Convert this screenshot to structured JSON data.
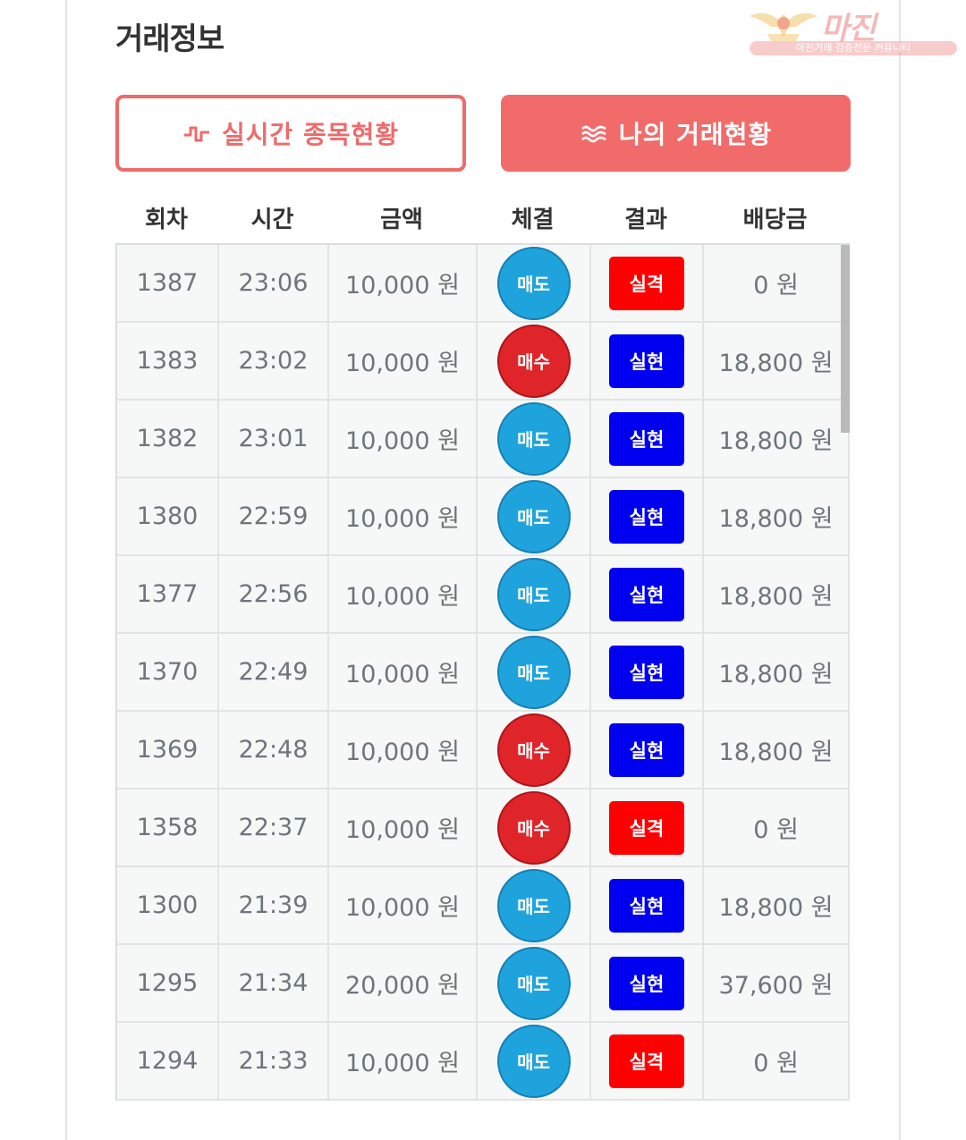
{
  "section_title": "거래정보",
  "watermark": {
    "text": "마진",
    "sub": "마진거래 검증전문 커뮤니티"
  },
  "tabs": [
    {
      "label": "실시간 종목현황",
      "icon": "pulse-icon",
      "active": false
    },
    {
      "label": "나의 거래현황",
      "icon": "waves-icon",
      "active": true
    }
  ],
  "table": {
    "headers": [
      "회차",
      "시간",
      "금액",
      "체결",
      "결과",
      "배당금"
    ],
    "rows": [
      {
        "round": "1387",
        "time": "23:06",
        "amount": "10,000 원",
        "exec": "매도",
        "exec_type": "sell",
        "result": "실격",
        "result_type": "miss",
        "payout": "0 원"
      },
      {
        "round": "1383",
        "time": "23:02",
        "amount": "10,000 원",
        "exec": "매수",
        "exec_type": "buy",
        "result": "실현",
        "result_type": "hit",
        "payout": "18,800 원"
      },
      {
        "round": "1382",
        "time": "23:01",
        "amount": "10,000 원",
        "exec": "매도",
        "exec_type": "sell",
        "result": "실현",
        "result_type": "hit",
        "payout": "18,800 원"
      },
      {
        "round": "1380",
        "time": "22:59",
        "amount": "10,000 원",
        "exec": "매도",
        "exec_type": "sell",
        "result": "실현",
        "result_type": "hit",
        "payout": "18,800 원"
      },
      {
        "round": "1377",
        "time": "22:56",
        "amount": "10,000 원",
        "exec": "매도",
        "exec_type": "sell",
        "result": "실현",
        "result_type": "hit",
        "payout": "18,800 원"
      },
      {
        "round": "1370",
        "time": "22:49",
        "amount": "10,000 원",
        "exec": "매도",
        "exec_type": "sell",
        "result": "실현",
        "result_type": "hit",
        "payout": "18,800 원"
      },
      {
        "round": "1369",
        "time": "22:48",
        "amount": "10,000 원",
        "exec": "매수",
        "exec_type": "buy",
        "result": "실현",
        "result_type": "hit",
        "payout": "18,800 원"
      },
      {
        "round": "1358",
        "time": "22:37",
        "amount": "10,000 원",
        "exec": "매수",
        "exec_type": "buy",
        "result": "실격",
        "result_type": "miss",
        "payout": "0 원"
      },
      {
        "round": "1300",
        "time": "21:39",
        "amount": "10,000 원",
        "exec": "매도",
        "exec_type": "sell",
        "result": "실현",
        "result_type": "hit",
        "payout": "18,800 원"
      },
      {
        "round": "1295",
        "time": "21:34",
        "amount": "20,000 원",
        "exec": "매도",
        "exec_type": "sell",
        "result": "실현",
        "result_type": "hit",
        "payout": "37,600 원"
      },
      {
        "round": "1294",
        "time": "21:33",
        "amount": "10,000 원",
        "exec": "매도",
        "exec_type": "sell",
        "result": "실격",
        "result_type": "miss",
        "payout": "0 원"
      }
    ]
  },
  "colors": {
    "accent": "#f26b6b",
    "sell": "#1fa3dd",
    "buy": "#e0252a",
    "hit": "#0000f0",
    "miss": "#ff0000"
  }
}
